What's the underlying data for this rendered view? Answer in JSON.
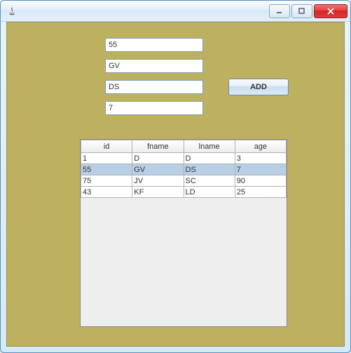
{
  "window": {
    "title": "",
    "icon": "java-icon"
  },
  "colors": {
    "panel_bg": "#bdb15f",
    "selected_row": "#b8cfe5",
    "field_border": "#7a9ebd",
    "table_bg": "#eeeeee",
    "header_grad_top": "#fdfdfd",
    "header_grad_bot": "#ececec",
    "cell_border": "#b0b0b0"
  },
  "form": {
    "id_value": "55",
    "fname_value": "GV",
    "lname_value": "DS",
    "age_value": "7",
    "add_label": "ADD"
  },
  "table": {
    "columns": [
      "id",
      "fname",
      "lname",
      "age"
    ],
    "rows": [
      {
        "id": "1",
        "fname": "D",
        "lname": "D",
        "age": "3",
        "selected": false
      },
      {
        "id": "55",
        "fname": "GV",
        "lname": "DS",
        "age": "7",
        "selected": true
      },
      {
        "id": "75",
        "fname": "JV",
        "lname": "SC",
        "age": "90",
        "selected": false
      },
      {
        "id": "43",
        "fname": "KF",
        "lname": "LD",
        "age": "25",
        "selected": false
      }
    ],
    "column_width_pct": [
      25,
      25,
      25,
      25
    ],
    "header_fontsize": 11,
    "cell_fontsize": 11
  }
}
